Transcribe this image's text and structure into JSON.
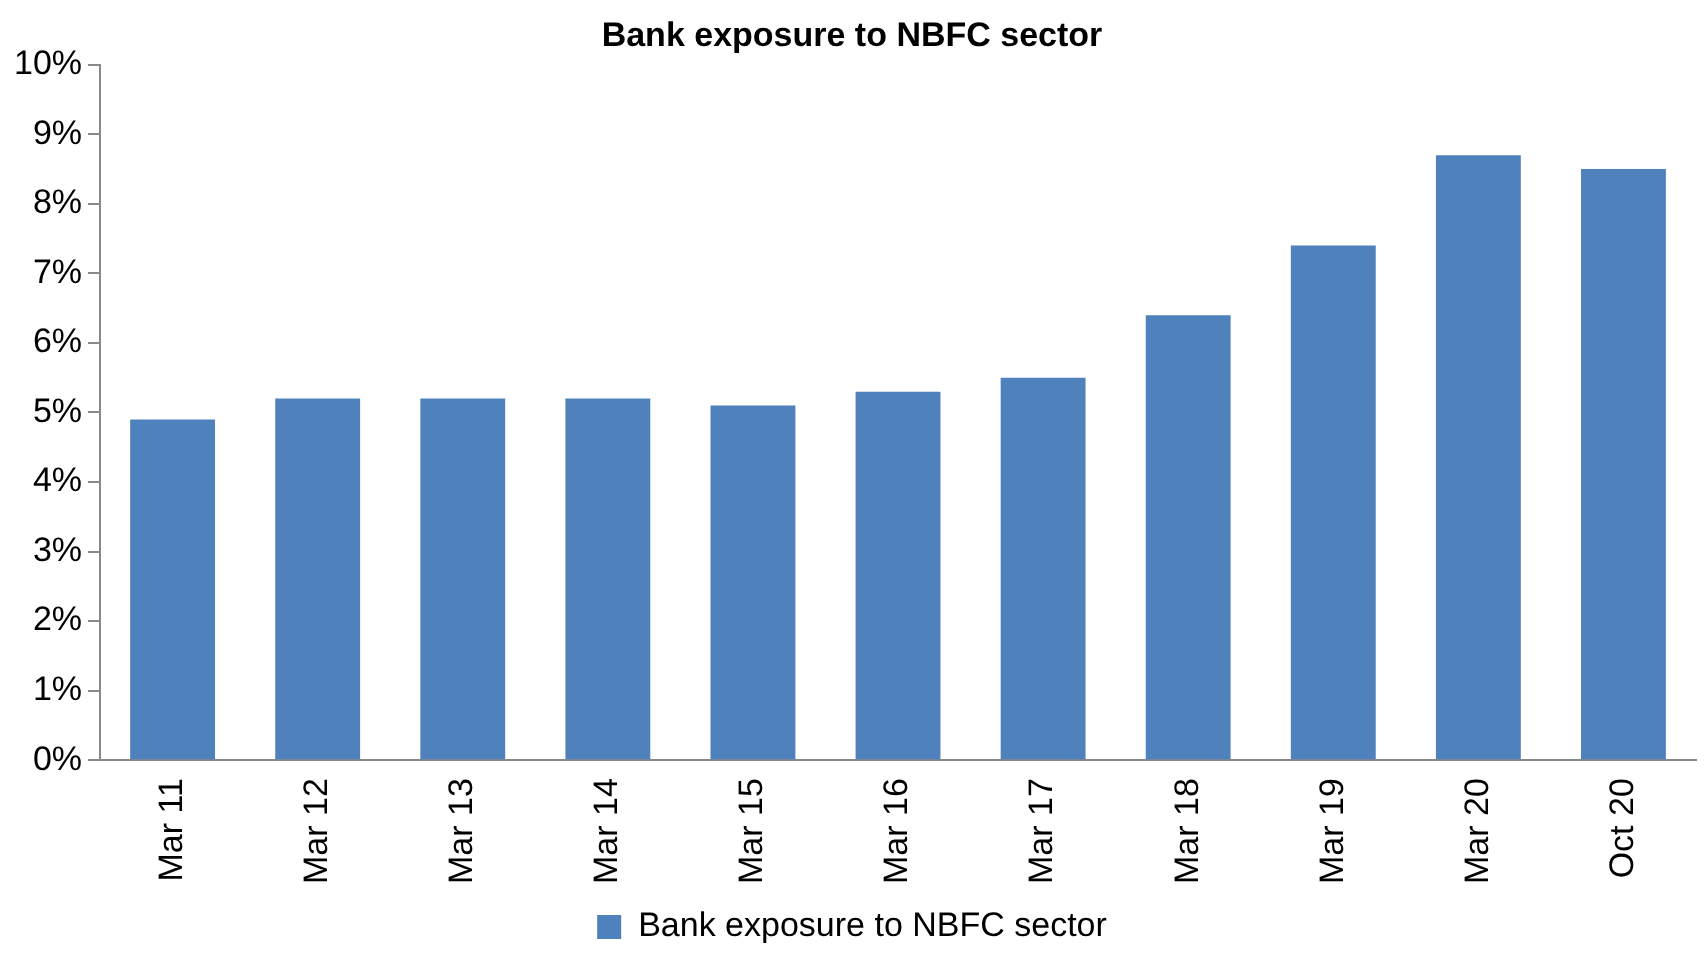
{
  "chart_data": {
    "type": "bar",
    "title": "Bank exposure to NBFC sector",
    "categories": [
      "Mar 11",
      "Mar 12",
      "Mar 13",
      "Mar 14",
      "Mar 15",
      "Mar 16",
      "Mar 17",
      "Mar 18",
      "Mar 19",
      "Mar 20",
      "Oct 20"
    ],
    "series": [
      {
        "name": "Bank exposure to NBFC sector",
        "color": "#4f81bd",
        "values": [
          4.9,
          5.2,
          5.2,
          5.2,
          5.1,
          5.3,
          5.5,
          6.4,
          7.4,
          8.7,
          8.5
        ]
      }
    ],
    "ylim": [
      0,
      10
    ],
    "yticks": [
      {
        "value": 0,
        "label": "0%"
      },
      {
        "value": 1,
        "label": "1%"
      },
      {
        "value": 2,
        "label": "2%"
      },
      {
        "value": 3,
        "label": "3%"
      },
      {
        "value": 4,
        "label": "4%"
      },
      {
        "value": 5,
        "label": "5%"
      },
      {
        "value": 6,
        "label": "6%"
      },
      {
        "value": 7,
        "label": "7%"
      },
      {
        "value": 8,
        "label": "8%"
      },
      {
        "value": 9,
        "label": "9%"
      },
      {
        "value": 10,
        "label": "10%"
      }
    ],
    "grid": false,
    "legend": "bottom"
  }
}
